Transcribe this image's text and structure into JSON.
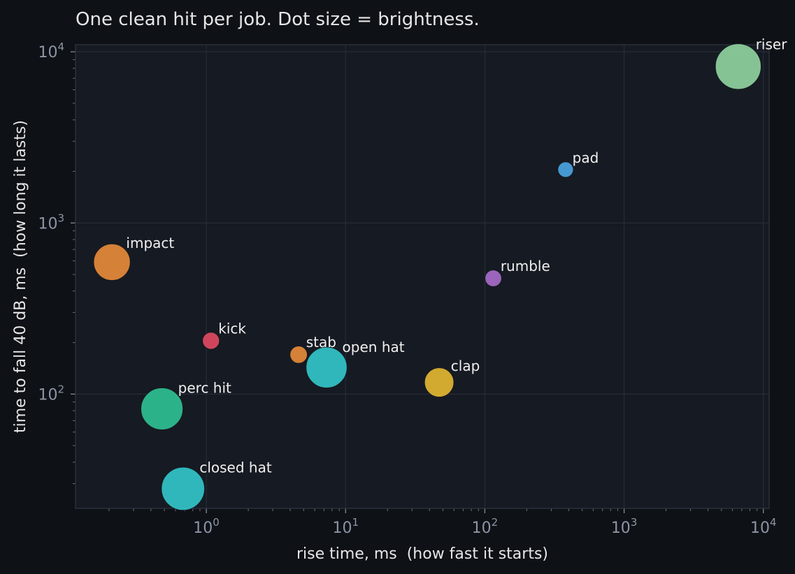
{
  "chart_data": {
    "type": "scatter",
    "title": "One clean hit per job. Dot size = brightness.",
    "xlabel": "rise time, ms  (how fast it starts)",
    "ylabel": "time to fall 40 dB, ms  (how long it lasts)",
    "xscale": "log",
    "yscale": "log",
    "xlim": [
      0.115,
      11000
    ],
    "ylim": [
      21.5,
      11000
    ],
    "grid": true,
    "legend": "none",
    "x_ticks": [
      {
        "base": "10",
        "exp": "0",
        "value": 1
      },
      {
        "base": "10",
        "exp": "1",
        "value": 10
      },
      {
        "base": "10",
        "exp": "2",
        "value": 100
      },
      {
        "base": "10",
        "exp": "3",
        "value": 1000
      },
      {
        "base": "10",
        "exp": "4",
        "value": 10000
      }
    ],
    "y_ticks": [
      {
        "base": "10",
        "exp": "2",
        "value": 100
      },
      {
        "base": "10",
        "exp": "3",
        "value": 1000
      },
      {
        "base": "10",
        "exp": "4",
        "value": 10000
      }
    ],
    "points": [
      {
        "label": "riser",
        "x": 6600,
        "y": 8200,
        "brightness": 0.95,
        "color": "#8fd19e"
      },
      {
        "label": "pad",
        "x": 380,
        "y": 2050,
        "brightness": 0.12,
        "color": "#4aa3df"
      },
      {
        "label": "impact",
        "x": 0.21,
        "y": 590,
        "brightness": 0.7,
        "color": "#e68a3a"
      },
      {
        "label": "rumble",
        "x": 115,
        "y": 475,
        "brightness": 0.15,
        "color": "#a66bc9"
      },
      {
        "label": "kick",
        "x": 1.08,
        "y": 205,
        "brightness": 0.16,
        "color": "#e04a62"
      },
      {
        "label": "stab",
        "x": 4.6,
        "y": 170,
        "brightness": 0.17,
        "color": "#e68a3a"
      },
      {
        "label": "open hat",
        "x": 7.3,
        "y": 143,
        "brightness": 0.82,
        "color": "#33c4c9"
      },
      {
        "label": "clap",
        "x": 47,
        "y": 117,
        "brightness": 0.5,
        "color": "#e4b632"
      },
      {
        "label": "perc hit",
        "x": 0.48,
        "y": 82,
        "brightness": 0.85,
        "color": "#2fbf93"
      },
      {
        "label": "closed hat",
        "x": 0.68,
        "y": 28,
        "brightness": 0.88,
        "color": "#33c4c9"
      }
    ]
  },
  "colors": {
    "page_background": "#0e1116",
    "plot_background": "#161a22",
    "grid": "#262c37",
    "axis_frame": "#2a303b",
    "tick_text": "#8c95a5",
    "text": "#e6e6e6"
  }
}
